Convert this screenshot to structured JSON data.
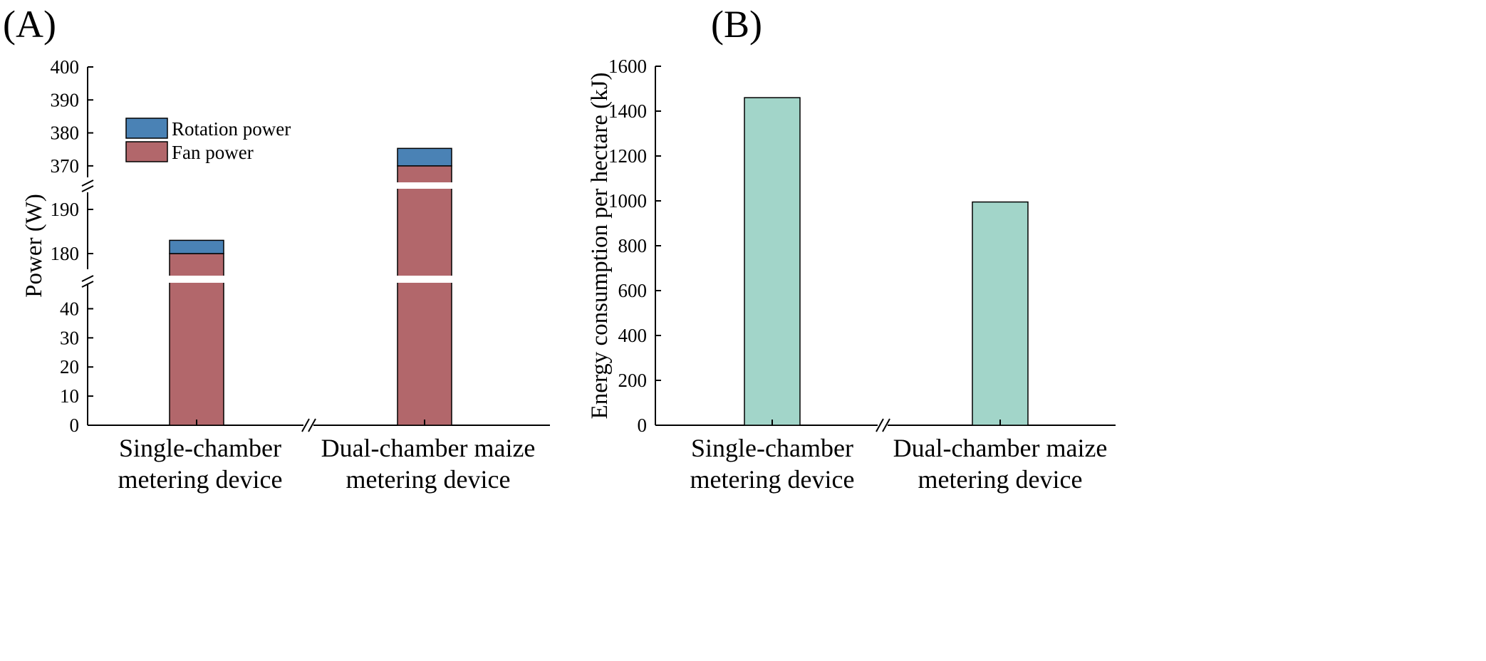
{
  "chart_data": [
    {
      "panel": "(A)",
      "type": "bar",
      "stacked": true,
      "ylabel": "Power (W)",
      "categories": [
        "Single-chamber metering device",
        "Dual-chamber maize metering device"
      ],
      "category_lines": [
        [
          "Single-chamber",
          "metering device"
        ],
        [
          "Dual-chamber maize",
          "metering device"
        ]
      ],
      "series": [
        {
          "name": "Fan power",
          "values": [
            180,
            370
          ],
          "color": "#b2676b"
        },
        {
          "name": "Rotation power",
          "values": [
            3,
            5.3
          ],
          "color": "#4a82b5"
        }
      ],
      "y_axis_broken": true,
      "y_segments": [
        {
          "range": [
            0,
            45
          ],
          "ticks": [
            0,
            10,
            20,
            30,
            40
          ]
        },
        {
          "range": [
            175,
            195
          ],
          "ticks": [
            180,
            190
          ]
        },
        {
          "range": [
            365,
            400
          ],
          "ticks": [
            370,
            380,
            390,
            400
          ]
        }
      ],
      "legend_position": "top-left"
    },
    {
      "panel": "(B)",
      "type": "bar",
      "ylabel": "Energy consumption per hectare (kJ)",
      "categories": [
        "Single-chamber metering device",
        "Dual-chamber maize metering device"
      ],
      "category_lines": [
        [
          "Single-chamber",
          "metering device"
        ],
        [
          "Dual-chamber maize",
          "metering device"
        ]
      ],
      "values": [
        1460,
        995
      ],
      "color": "#a2d5c9",
      "ylim": [
        0,
        1600
      ],
      "ticks": [
        0,
        200,
        400,
        600,
        800,
        1000,
        1200,
        1400,
        1600
      ]
    }
  ]
}
